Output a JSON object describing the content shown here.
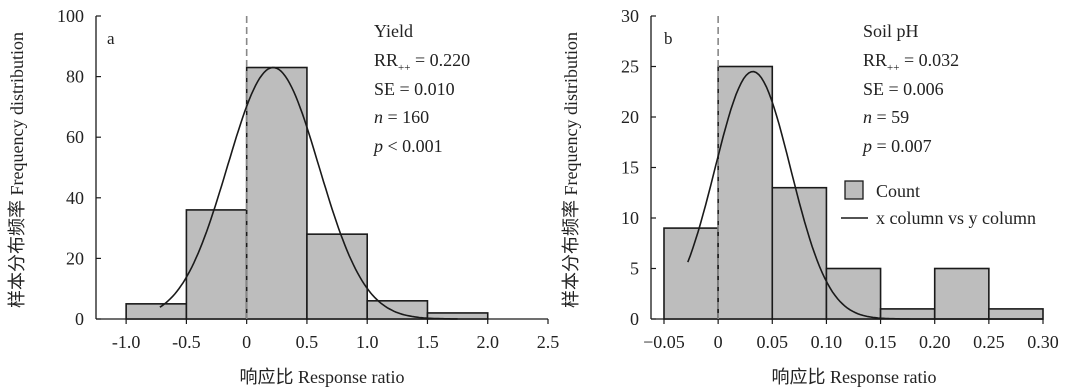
{
  "chart_data": [
    {
      "type": "bar",
      "panel_label": "a",
      "xlabel": "响应比 Response ratio",
      "ylabel": "样本分布频率 Frequency distribution",
      "xlim": [
        -1.25,
        2.5
      ],
      "ylim": [
        0,
        100
      ],
      "xticks": [
        "-1.0",
        "-0.5",
        "0",
        "0.5",
        "1.0",
        "1.5",
        "2.0",
        "2.5"
      ],
      "xtick_values": [
        -1.0,
        -0.5,
        0,
        0.5,
        1.0,
        1.5,
        2.0,
        2.5
      ],
      "yticks": [
        "0",
        "20",
        "40",
        "60",
        "80",
        "100"
      ],
      "ytick_values": [
        0,
        20,
        40,
        60,
        80,
        100
      ],
      "bins": [
        {
          "x0": -1.0,
          "x1": -0.5,
          "count": 5
        },
        {
          "x0": -0.5,
          "x1": 0.0,
          "count": 36
        },
        {
          "x0": 0.0,
          "x1": 0.5,
          "count": 83
        },
        {
          "x0": 0.5,
          "x1": 1.0,
          "count": 28
        },
        {
          "x0": 1.0,
          "x1": 1.5,
          "count": 6
        },
        {
          "x0": 1.5,
          "x1": 2.0,
          "count": 2
        }
      ],
      "fit_curve": {
        "mean": 0.22,
        "sd": 0.38,
        "peak": 83,
        "x_range": [
          -0.72,
          1.75
        ]
      },
      "reference_line_x": 0,
      "stats": {
        "title": "Yield",
        "rr_label": "RR",
        "rr_sub": "++",
        "rr_value": " = 0.220",
        "se": "SE = 0.010",
        "n_label": "n",
        "n_value": " = 160",
        "p_label": "p",
        "p_value": " < 0.001"
      },
      "legend": null,
      "colors": {
        "bar_fill": "#bdbdbd",
        "bar_stroke": "#1a1a1a",
        "curve": "#1a1a1a",
        "refline": "#888888"
      }
    },
    {
      "type": "bar",
      "panel_label": "b",
      "xlabel": "响应比 Response ratio",
      "ylabel": "样本分布频率 Frequency distribution",
      "xlim": [
        -0.062,
        0.3
      ],
      "ylim": [
        0,
        30
      ],
      "xticks": [
        "−0.05",
        "0",
        "0.05",
        "0.10",
        "0.15",
        "0.20",
        "0.25",
        "0.30"
      ],
      "xtick_values": [
        -0.05,
        0,
        0.05,
        0.1,
        0.15,
        0.2,
        0.25,
        0.3
      ],
      "yticks": [
        "0",
        "5",
        "10",
        "15",
        "20",
        "25",
        "30"
      ],
      "ytick_values": [
        0,
        5,
        10,
        15,
        20,
        25,
        30
      ],
      "bins": [
        {
          "x0": -0.05,
          "x1": 0.0,
          "count": 9
        },
        {
          "x0": 0.0,
          "x1": 0.05,
          "count": 25
        },
        {
          "x0": 0.05,
          "x1": 0.1,
          "count": 13
        },
        {
          "x0": 0.1,
          "x1": 0.15,
          "count": 5
        },
        {
          "x0": 0.15,
          "x1": 0.2,
          "count": 1
        },
        {
          "x0": 0.2,
          "x1": 0.25,
          "count": 5
        },
        {
          "x0": 0.25,
          "x1": 0.3,
          "count": 1
        }
      ],
      "fit_curve": {
        "mean": 0.032,
        "sd": 0.035,
        "peak": 24.5,
        "x_range": [
          -0.028,
          0.3
        ]
      },
      "reference_line_x": 0,
      "stats": {
        "title": "Soil pH",
        "rr_label": "RR",
        "rr_sub": "++",
        "rr_value": " = 0.032",
        "se": "SE = 0.006",
        "n_label": "n",
        "n_value": " = 59",
        "p_label": "p",
        "p_value": " = 0.007"
      },
      "legend": {
        "placement": "right",
        "items": [
          "Count",
          "x column vs y column"
        ]
      },
      "colors": {
        "bar_fill": "#bdbdbd",
        "bar_stroke": "#1a1a1a",
        "curve": "#1a1a1a",
        "refline": "#888888"
      }
    }
  ]
}
